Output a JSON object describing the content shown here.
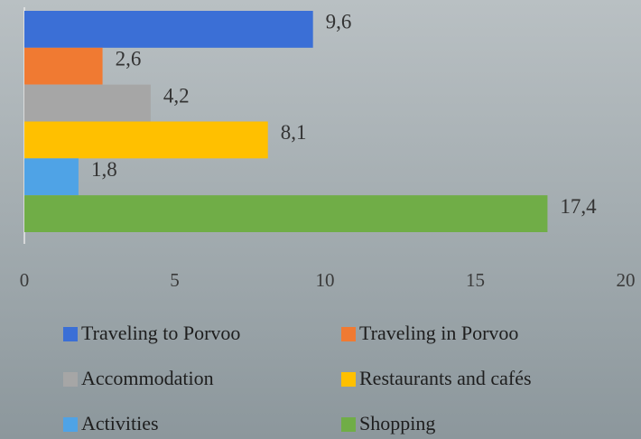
{
  "chart_data": {
    "type": "bar",
    "orientation": "horizontal",
    "series": [
      {
        "name": "Traveling to Porvoo",
        "color": "#3b6fd6",
        "values": [
          9.6
        ],
        "value_labels": [
          "9,6"
        ]
      },
      {
        "name": "Traveling in Porvoo",
        "color": "#f07a32",
        "values": [
          2.6
        ],
        "value_labels": [
          "2,6"
        ]
      },
      {
        "name": "Accommodation",
        "color": "#a6a6a6",
        "values": [
          4.2
        ],
        "value_labels": [
          "4,2"
        ]
      },
      {
        "name": "Restaurants and cafés",
        "color": "#ffc000",
        "values": [
          8.1
        ],
        "value_labels": [
          "8,1"
        ]
      },
      {
        "name": "Activities",
        "color": "#4fa3e6",
        "values": [
          1.8
        ],
        "value_labels": [
          "1,8"
        ]
      },
      {
        "name": "Shopping",
        "color": "#70ad47",
        "values": [
          17.4
        ],
        "value_labels": [
          "17,4"
        ]
      }
    ],
    "xlim": [
      0,
      20
    ],
    "xticks": [
      0,
      5,
      10,
      15,
      20
    ],
    "grid": false
  }
}
